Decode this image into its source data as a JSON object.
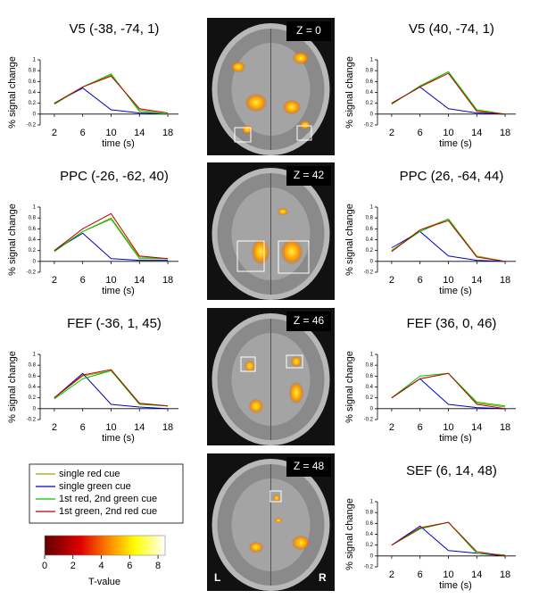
{
  "chart_data": [
    {
      "type": "line",
      "title": "V5 (-38, -74, 1)",
      "y_label": "% signal change",
      "x_label": "time (s)",
      "x": [
        2,
        6,
        10,
        14,
        18
      ],
      "xlim": [
        0,
        19.5
      ],
      "xticks": [
        2,
        6,
        10,
        14,
        18
      ],
      "ylim": [
        -0.2,
        1
      ],
      "yticks": [
        -0.2,
        0,
        0.2,
        0.4,
        0.6,
        0.8,
        1
      ],
      "series": [
        {
          "name": "single red cue",
          "color": "#a0a000",
          "values": [
            0.2,
            0.5,
            0.72,
            0.08,
            0
          ]
        },
        {
          "name": "single green cue",
          "color": "#0000c0",
          "values": [
            0.2,
            0.48,
            0.08,
            0.02,
            0
          ]
        },
        {
          "name": "1st red, 2nd green cue",
          "color": "#00c000",
          "values": [
            0.18,
            0.5,
            0.74,
            0.05,
            0
          ]
        },
        {
          "name": "1st green, 2nd red cue",
          "color": "#c00000",
          "values": [
            0.2,
            0.5,
            0.7,
            0.1,
            0.02
          ]
        }
      ]
    },
    {
      "type": "line",
      "title": "V5 (40, -74, 1)",
      "y_label": "% signal change",
      "x_label": "time (s)",
      "x": [
        2,
        6,
        10,
        14,
        18
      ],
      "xlim": [
        0,
        19.5
      ],
      "xticks": [
        2,
        6,
        10,
        14,
        18
      ],
      "ylim": [
        -0.2,
        1
      ],
      "yticks": [
        -0.2,
        0,
        0.2,
        0.4,
        0.6,
        0.8,
        1
      ],
      "series": [
        {
          "name": "single red cue",
          "color": "#a0a000",
          "values": [
            0.2,
            0.5,
            0.78,
            0.07,
            0
          ]
        },
        {
          "name": "single green cue",
          "color": "#0000c0",
          "values": [
            0.2,
            0.5,
            0.1,
            0.02,
            0
          ]
        },
        {
          "name": "1st red, 2nd green cue",
          "color": "#00c000",
          "values": [
            0.18,
            0.52,
            0.78,
            0.08,
            0
          ]
        },
        {
          "name": "1st green, 2nd red cue",
          "color": "#c00000",
          "values": [
            0.2,
            0.5,
            0.75,
            0.05,
            0
          ]
        }
      ]
    },
    {
      "type": "line",
      "title": "PPC (-26, -62, 40)",
      "y_label": "% signal change",
      "x_label": "time (s)",
      "x": [
        2,
        6,
        10,
        14,
        18
      ],
      "xlim": [
        0,
        19.5
      ],
      "xticks": [
        2,
        6,
        10,
        14,
        18
      ],
      "ylim": [
        -0.2,
        1
      ],
      "yticks": [
        -0.2,
        0,
        0.2,
        0.4,
        0.6,
        0.8,
        1
      ],
      "series": [
        {
          "name": "single red cue",
          "color": "#a0a000",
          "values": [
            0.2,
            0.55,
            0.8,
            0.08,
            0.05
          ]
        },
        {
          "name": "single green cue",
          "color": "#0000c0",
          "values": [
            0.2,
            0.52,
            0.05,
            0.02,
            0.02
          ]
        },
        {
          "name": "1st red, 2nd green cue",
          "color": "#00c000",
          "values": [
            0.18,
            0.55,
            0.78,
            0.05,
            0.05
          ]
        },
        {
          "name": "1st green, 2nd red cue",
          "color": "#c00000",
          "values": [
            0.2,
            0.6,
            0.88,
            0.1,
            0.05
          ]
        }
      ]
    },
    {
      "type": "line",
      "title": "PPC (26, -64, 44)",
      "y_label": "% signal change",
      "x_label": "time (s)",
      "x": [
        2,
        6,
        10,
        14,
        18
      ],
      "xlim": [
        0,
        19.5
      ],
      "xticks": [
        2,
        6,
        10,
        14,
        18
      ],
      "ylim": [
        -0.2,
        1
      ],
      "yticks": [
        -0.2,
        0,
        0.2,
        0.4,
        0.6,
        0.8,
        1
      ],
      "series": [
        {
          "name": "single red cue",
          "color": "#a0a000",
          "values": [
            0.2,
            0.58,
            0.78,
            0.1,
            0
          ]
        },
        {
          "name": "single green cue",
          "color": "#0000c0",
          "values": [
            0.25,
            0.55,
            0.1,
            0.02,
            0
          ]
        },
        {
          "name": "1st red, 2nd green cue",
          "color": "#00c000",
          "values": [
            0.2,
            0.55,
            0.78,
            0.08,
            0
          ]
        },
        {
          "name": "1st green, 2nd red cue",
          "color": "#c00000",
          "values": [
            0.18,
            0.58,
            0.75,
            0.08,
            0
          ]
        }
      ]
    },
    {
      "type": "line",
      "title": "FEF (-36, 1, 45)",
      "y_label": "% signal change",
      "x_label": "time (s)",
      "x": [
        2,
        6,
        10,
        14,
        18
      ],
      "xlim": [
        0,
        19.5
      ],
      "xticks": [
        2,
        6,
        10,
        14,
        18
      ],
      "ylim": [
        -0.2,
        1
      ],
      "yticks": [
        -0.2,
        0,
        0.2,
        0.4,
        0.6,
        0.8,
        1
      ],
      "series": [
        {
          "name": "single red cue",
          "color": "#a0a000",
          "values": [
            0.2,
            0.6,
            0.7,
            0.1,
            0.05
          ]
        },
        {
          "name": "single green cue",
          "color": "#0000c0",
          "values": [
            0.2,
            0.65,
            0.08,
            0.03,
            0
          ]
        },
        {
          "name": "1st red, 2nd green cue",
          "color": "#00c000",
          "values": [
            0.18,
            0.55,
            0.7,
            0.08,
            0.05
          ]
        },
        {
          "name": "1st green, 2nd red cue",
          "color": "#c00000",
          "values": [
            0.2,
            0.62,
            0.72,
            0.1,
            0.05
          ]
        }
      ]
    },
    {
      "type": "line",
      "title": "FEF (36, 0, 46)",
      "y_label": "% signal change",
      "x_label": "time (s)",
      "x": [
        2,
        6,
        10,
        14,
        18
      ],
      "xlim": [
        0,
        19.5
      ],
      "xticks": [
        2,
        6,
        10,
        14,
        18
      ],
      "ylim": [
        -0.2,
        1
      ],
      "yticks": [
        -0.2,
        0,
        0.2,
        0.4,
        0.6,
        0.8,
        1
      ],
      "series": [
        {
          "name": "single red cue",
          "color": "#a0a000",
          "values": [
            0.2,
            0.55,
            0.65,
            0.1,
            0.03
          ]
        },
        {
          "name": "single green cue",
          "color": "#0000c0",
          "values": [
            0.2,
            0.55,
            0.08,
            0.02,
            0
          ]
        },
        {
          "name": "1st red, 2nd green cue",
          "color": "#00c000",
          "values": [
            0.2,
            0.6,
            0.65,
            0.12,
            0.05
          ]
        },
        {
          "name": "1st green, 2nd red cue",
          "color": "#c00000",
          "values": [
            0.2,
            0.55,
            0.65,
            0.08,
            0
          ]
        }
      ]
    },
    {
      "type": "line",
      "title": "SEF (6, 14, 48)",
      "y_label": "% signal change",
      "x_label": "time (s)",
      "x": [
        2,
        6,
        10,
        14,
        18
      ],
      "xlim": [
        0,
        19.5
      ],
      "xticks": [
        2,
        6,
        10,
        14,
        18
      ],
      "ylim": [
        -0.2,
        1
      ],
      "yticks": [
        -0.2,
        0,
        0.2,
        0.4,
        0.6,
        0.8,
        1
      ],
      "series": [
        {
          "name": "single red cue",
          "color": "#a0a000",
          "values": [
            0.2,
            0.5,
            0.62,
            0.05,
            0
          ]
        },
        {
          "name": "single green cue",
          "color": "#0000c0",
          "values": [
            0.2,
            0.55,
            0.1,
            0.05,
            0
          ]
        },
        {
          "name": "1st red, 2nd green cue",
          "color": "#00c000",
          "values": [
            0.2,
            0.5,
            0.62,
            0.05,
            0.02
          ]
        },
        {
          "name": "1st green, 2nd red cue",
          "color": "#c00000",
          "values": [
            0.2,
            0.52,
            0.62,
            0.08,
            0
          ]
        }
      ]
    }
  ],
  "brain_slices": [
    {
      "label": "Z = 0"
    },
    {
      "label": "Z = 42"
    },
    {
      "label": "Z = 46"
    },
    {
      "label": "Z = 48",
      "left": "L",
      "right": "R"
    }
  ],
  "colorbar": {
    "label": "T-value",
    "lim": [
      0,
      8.5
    ],
    "ticks": [
      0,
      2,
      4,
      6,
      8
    ]
  }
}
